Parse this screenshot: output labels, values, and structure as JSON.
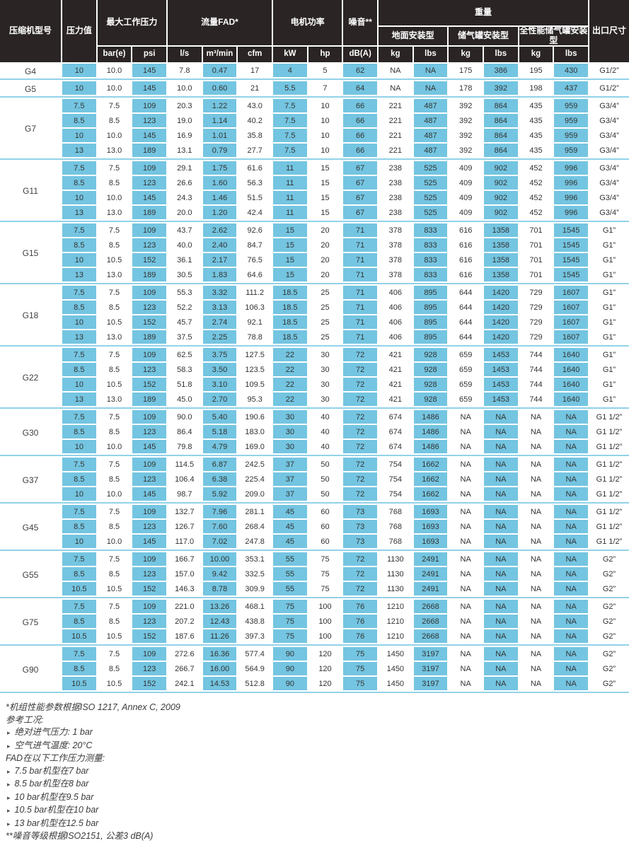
{
  "table": {
    "header": {
      "model": "压缩机型号",
      "pressure": "压力值",
      "max_working_pressure": "最大工作压力",
      "flow": "流量FAD*",
      "motor_power": "电机功率",
      "noise": "噪音**",
      "weight": "重量",
      "outlet": "出口尺寸",
      "weight_subheaders": [
        "地面安装型",
        "储气罐安装型",
        "全性能储气罐安装型"
      ],
      "units": [
        "bar(e)",
        "psi",
        "l/s",
        "m³/min",
        "cfm",
        "kW",
        "hp",
        "dB(A)",
        "kg",
        "lbs",
        "kg",
        "lbs",
        "kg",
        "lbs"
      ]
    },
    "groups": [
      {
        "model": "G4",
        "rows": [
          [
            "10",
            "10.0",
            "145",
            "7.8",
            "0.47",
            "17",
            "4",
            "5",
            "62",
            "NA",
            "NA",
            "175",
            "386",
            "195",
            "430",
            "G1/2”"
          ]
        ]
      },
      {
        "model": "G5",
        "rows": [
          [
            "10",
            "10.0",
            "145",
            "10.0",
            "0.60",
            "21",
            "5.5",
            "7",
            "64",
            "NA",
            "NA",
            "178",
            "392",
            "198",
            "437",
            "G1/2”"
          ]
        ]
      },
      {
        "model": "G7",
        "rows": [
          [
            "7.5",
            "7.5",
            "109",
            "20.3",
            "1.22",
            "43.0",
            "7.5",
            "10",
            "66",
            "221",
            "487",
            "392",
            "864",
            "435",
            "959",
            "G3/4”"
          ],
          [
            "8.5",
            "8.5",
            "123",
            "19.0",
            "1.14",
            "40.2",
            "7.5",
            "10",
            "66",
            "221",
            "487",
            "392",
            "864",
            "435",
            "959",
            "G3/4”"
          ],
          [
            "10",
            "10.0",
            "145",
            "16.9",
            "1.01",
            "35.8",
            "7.5",
            "10",
            "66",
            "221",
            "487",
            "392",
            "864",
            "435",
            "959",
            "G3/4”"
          ],
          [
            "13",
            "13.0",
            "189",
            "13.1",
            "0.79",
            "27.7",
            "7.5",
            "10",
            "66",
            "221",
            "487",
            "392",
            "864",
            "435",
            "959",
            "G3/4”"
          ]
        ]
      },
      {
        "model": "G11",
        "rows": [
          [
            "7.5",
            "7.5",
            "109",
            "29.1",
            "1.75",
            "61.6",
            "11",
            "15",
            "67",
            "238",
            "525",
            "409",
            "902",
            "452",
            "996",
            "G3/4”"
          ],
          [
            "8.5",
            "8.5",
            "123",
            "26.6",
            "1.60",
            "56.3",
            "11",
            "15",
            "67",
            "238",
            "525",
            "409",
            "902",
            "452",
            "996",
            "G3/4”"
          ],
          [
            "10",
            "10.0",
            "145",
            "24.3",
            "1.46",
            "51.5",
            "11",
            "15",
            "67",
            "238",
            "525",
            "409",
            "902",
            "452",
            "996",
            "G3/4”"
          ],
          [
            "13",
            "13.0",
            "189",
            "20.0",
            "1.20",
            "42.4",
            "11",
            "15",
            "67",
            "238",
            "525",
            "409",
            "902",
            "452",
            "996",
            "G3/4”"
          ]
        ]
      },
      {
        "model": "G15",
        "rows": [
          [
            "7.5",
            "7.5",
            "109",
            "43.7",
            "2.62",
            "92.6",
            "15",
            "20",
            "71",
            "378",
            "833",
            "616",
            "1358",
            "701",
            "1545",
            "G1”"
          ],
          [
            "8.5",
            "8.5",
            "123",
            "40.0",
            "2.40",
            "84.7",
            "15",
            "20",
            "71",
            "378",
            "833",
            "616",
            "1358",
            "701",
            "1545",
            "G1”"
          ],
          [
            "10",
            "10.5",
            "152",
            "36.1",
            "2.17",
            "76.5",
            "15",
            "20",
            "71",
            "378",
            "833",
            "616",
            "1358",
            "701",
            "1545",
            "G1”"
          ],
          [
            "13",
            "13.0",
            "189",
            "30.5",
            "1.83",
            "64.6",
            "15",
            "20",
            "71",
            "378",
            "833",
            "616",
            "1358",
            "701",
            "1545",
            "G1”"
          ]
        ]
      },
      {
        "model": "G18",
        "rows": [
          [
            "7.5",
            "7.5",
            "109",
            "55.3",
            "3.32",
            "111.2",
            "18.5",
            "25",
            "71",
            "406",
            "895",
            "644",
            "1420",
            "729",
            "1607",
            "G1”"
          ],
          [
            "8.5",
            "8.5",
            "123",
            "52.2",
            "3.13",
            "106.3",
            "18.5",
            "25",
            "71",
            "406",
            "895",
            "644",
            "1420",
            "729",
            "1607",
            "G1”"
          ],
          [
            "10",
            "10.5",
            "152",
            "45.7",
            "2.74",
            "92.1",
            "18.5",
            "25",
            "71",
            "406",
            "895",
            "644",
            "1420",
            "729",
            "1607",
            "G1”"
          ],
          [
            "13",
            "13.0",
            "189",
            "37.5",
            "2.25",
            "78.8",
            "18.5",
            "25",
            "71",
            "406",
            "895",
            "644",
            "1420",
            "729",
            "1607",
            "G1”"
          ]
        ]
      },
      {
        "model": "G22",
        "rows": [
          [
            "7.5",
            "7.5",
            "109",
            "62.5",
            "3.75",
            "127.5",
            "22",
            "30",
            "72",
            "421",
            "928",
            "659",
            "1453",
            "744",
            "1640",
            "G1”"
          ],
          [
            "8.5",
            "8.5",
            "123",
            "58.3",
            "3.50",
            "123.5",
            "22",
            "30",
            "72",
            "421",
            "928",
            "659",
            "1453",
            "744",
            "1640",
            "G1”"
          ],
          [
            "10",
            "10.5",
            "152",
            "51.8",
            "3.10",
            "109.5",
            "22",
            "30",
            "72",
            "421",
            "928",
            "659",
            "1453",
            "744",
            "1640",
            "G1”"
          ],
          [
            "13",
            "13.0",
            "189",
            "45.0",
            "2.70",
            "95.3",
            "22",
            "30",
            "72",
            "421",
            "928",
            "659",
            "1453",
            "744",
            "1640",
            "G1”"
          ]
        ]
      },
      {
        "model": "G30",
        "rows": [
          [
            "7.5",
            "7.5",
            "109",
            "90.0",
            "5.40",
            "190.6",
            "30",
            "40",
            "72",
            "674",
            "1486",
            "NA",
            "NA",
            "NA",
            "NA",
            "G1 1/2”"
          ],
          [
            "8.5",
            "8.5",
            "123",
            "86.4",
            "5.18",
            "183.0",
            "30",
            "40",
            "72",
            "674",
            "1486",
            "NA",
            "NA",
            "NA",
            "NA",
            "G1 1/2”"
          ],
          [
            "10",
            "10.0",
            "145",
            "79.8",
            "4.79",
            "169.0",
            "30",
            "40",
            "72",
            "674",
            "1486",
            "NA",
            "NA",
            "NA",
            "NA",
            "G1 1/2”"
          ]
        ]
      },
      {
        "model": "G37",
        "rows": [
          [
            "7.5",
            "7.5",
            "109",
            "114.5",
            "6.87",
            "242.5",
            "37",
            "50",
            "72",
            "754",
            "1662",
            "NA",
            "NA",
            "NA",
            "NA",
            "G1 1/2”"
          ],
          [
            "8.5",
            "8.5",
            "123",
            "106.4",
            "6.38",
            "225.4",
            "37",
            "50",
            "72",
            "754",
            "1662",
            "NA",
            "NA",
            "NA",
            "NA",
            "G1 1/2”"
          ],
          [
            "10",
            "10.0",
            "145",
            "98.7",
            "5.92",
            "209.0",
            "37",
            "50",
            "72",
            "754",
            "1662",
            "NA",
            "NA",
            "NA",
            "NA",
            "G1 1/2”"
          ]
        ]
      },
      {
        "model": "G45",
        "rows": [
          [
            "7.5",
            "7.5",
            "109",
            "132.7",
            "7.96",
            "281.1",
            "45",
            "60",
            "73",
            "768",
            "1693",
            "NA",
            "NA",
            "NA",
            "NA",
            "G1 1/2”"
          ],
          [
            "8.5",
            "8.5",
            "123",
            "126.7",
            "7.60",
            "268.4",
            "45",
            "60",
            "73",
            "768",
            "1693",
            "NA",
            "NA",
            "NA",
            "NA",
            "G1 1/2”"
          ],
          [
            "10",
            "10.0",
            "145",
            "117.0",
            "7.02",
            "247.8",
            "45",
            "60",
            "73",
            "768",
            "1693",
            "NA",
            "NA",
            "NA",
            "NA",
            "G1 1/2”"
          ]
        ]
      },
      {
        "model": "G55",
        "rows": [
          [
            "7.5",
            "7.5",
            "109",
            "166.7",
            "10.00",
            "353.1",
            "55",
            "75",
            "72",
            "1130",
            "2491",
            "NA",
            "NA",
            "NA",
            "NA",
            "G2”"
          ],
          [
            "8.5",
            "8.5",
            "123",
            "157.0",
            "9.42",
            "332.5",
            "55",
            "75",
            "72",
            "1130",
            "2491",
            "NA",
            "NA",
            "NA",
            "NA",
            "G2”"
          ],
          [
            "10.5",
            "10.5",
            "152",
            "146.3",
            "8.78",
            "309.9",
            "55",
            "75",
            "72",
            "1130",
            "2491",
            "NA",
            "NA",
            "NA",
            "NA",
            "G2”"
          ]
        ]
      },
      {
        "model": "G75",
        "rows": [
          [
            "7.5",
            "7.5",
            "109",
            "221.0",
            "13.26",
            "468.1",
            "75",
            "100",
            "76",
            "1210",
            "2668",
            "NA",
            "NA",
            "NA",
            "NA",
            "G2”"
          ],
          [
            "8.5",
            "8.5",
            "123",
            "207.2",
            "12.43",
            "438.8",
            "75",
            "100",
            "76",
            "1210",
            "2668",
            "NA",
            "NA",
            "NA",
            "NA",
            "G2”"
          ],
          [
            "10.5",
            "10.5",
            "152",
            "187.6",
            "11.26",
            "397.3",
            "75",
            "100",
            "76",
            "1210",
            "2668",
            "NA",
            "NA",
            "NA",
            "NA",
            "G2”"
          ]
        ]
      },
      {
        "model": "G90",
        "rows": [
          [
            "7.5",
            "7.5",
            "109",
            "272.6",
            "16.36",
            "577.4",
            "90",
            "120",
            "75",
            "1450",
            "3197",
            "NA",
            "NA",
            "NA",
            "NA",
            "G2”"
          ],
          [
            "8.5",
            "8.5",
            "123",
            "266.7",
            "16.00",
            "564.9",
            "90",
            "120",
            "75",
            "1450",
            "3197",
            "NA",
            "NA",
            "NA",
            "NA",
            "G2”"
          ],
          [
            "10.5",
            "10.5",
            "152",
            "242.1",
            "14.53",
            "512.8",
            "90",
            "120",
            "75",
            "1450",
            "3197",
            "NA",
            "NA",
            "NA",
            "NA",
            "G2”"
          ]
        ]
      }
    ]
  },
  "footnotes": [
    {
      "bullet": false,
      "text": "*机组性能参数根据ISO 1217, Annex C, 2009"
    },
    {
      "bullet": false,
      "text": "参考工况:"
    },
    {
      "bullet": true,
      "text": "绝对进气压力: 1 bar"
    },
    {
      "bullet": true,
      "text": "空气进气温度: 20°C"
    },
    {
      "bullet": false,
      "text": "FAD在以下工作压力测量:"
    },
    {
      "bullet": true,
      "text": "7.5 bar机型在7 bar"
    },
    {
      "bullet": true,
      "text": "8.5 bar机型在8 bar"
    },
    {
      "bullet": true,
      "text": "10 bar机型在9.5 bar"
    },
    {
      "bullet": true,
      "text": "10.5 bar机型在10 bar"
    },
    {
      "bullet": true,
      "text": "13 bar机型在12.5 bar"
    },
    {
      "bullet": false,
      "text": "**噪音等级根据ISO2151, 公差3 dB(A)"
    }
  ],
  "colors": {
    "cell_blue": "#74c5e1",
    "separator_blue": "#92d2e8",
    "header_dark": "#2a2424",
    "text_dark": "#3a3a3a"
  }
}
